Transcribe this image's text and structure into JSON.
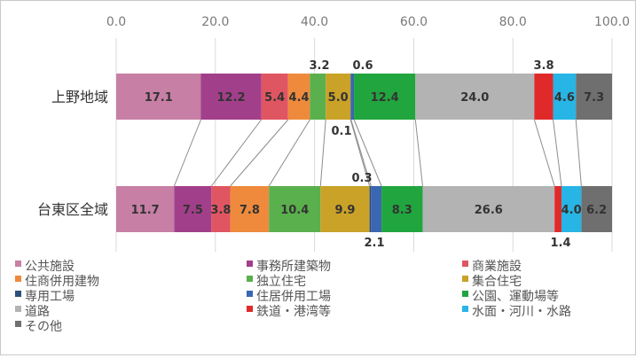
{
  "chart_data": {
    "type": "bar",
    "stacked": "percent",
    "orientation": "horizontal",
    "categories": [
      "上野地域",
      "台東区全域"
    ],
    "x_ticks": [
      "0.0",
      "20.0",
      "40.0",
      "60.0",
      "80.0",
      "100.0"
    ],
    "xlim": [
      0,
      100
    ],
    "grid": true,
    "legend_position": "bottom",
    "series": [
      {
        "name": "公共施設",
        "color": "#c77fa5",
        "values": [
          17.1,
          11.7
        ],
        "labels": [
          "17.1",
          "11.7"
        ]
      },
      {
        "name": "事務所建築物",
        "color": "#a23f8a",
        "values": [
          12.2,
          7.5
        ],
        "labels": [
          "12.2",
          "7.5"
        ]
      },
      {
        "name": "商業施設",
        "color": "#e05562",
        "values": [
          5.4,
          3.8
        ],
        "labels": [
          "5.4",
          "3.8"
        ]
      },
      {
        "name": "住商併用建物",
        "color": "#ef8a3c",
        "values": [
          4.4,
          7.8
        ],
        "labels": [
          "4.4",
          "7.8"
        ]
      },
      {
        "name": "独立住宅",
        "color": "#5ab04c",
        "values": [
          3.2,
          10.4
        ],
        "labels": [
          "3.2",
          "10.4"
        ]
      },
      {
        "name": "集合住宅",
        "color": "#c9a227",
        "values": [
          5.0,
          9.9
        ],
        "labels": [
          "5.0",
          "9.9"
        ]
      },
      {
        "name": "専用工場",
        "color": "#2b4f7a",
        "values": [
          0.1,
          0.3
        ],
        "labels": [
          "0.1",
          "0.3"
        ]
      },
      {
        "name": "住居併用工場",
        "color": "#3a66b2",
        "values": [
          0.6,
          2.1
        ],
        "labels": [
          "0.6",
          "2.1"
        ]
      },
      {
        "name": "公園、運動場等",
        "color": "#21a53e",
        "values": [
          12.4,
          8.3
        ],
        "labels": [
          "12.4",
          "8.3"
        ]
      },
      {
        "name": "道路",
        "color": "#b3b3b3",
        "values": [
          24.0,
          26.6
        ],
        "labels": [
          "24.0",
          "26.6"
        ]
      },
      {
        "name": "鉄道・港湾等",
        "color": "#e02a2a",
        "values": [
          3.8,
          1.4
        ],
        "labels": [
          "3.8",
          "1.4"
        ]
      },
      {
        "name": "水面・河川・水路",
        "color": "#27b5e5",
        "values": [
          4.6,
          4.0
        ],
        "labels": [
          "4.6",
          "4.0"
        ]
      },
      {
        "name": "その他",
        "color": "#6f6f6f",
        "values": [
          7.3,
          6.2
        ],
        "labels": [
          "7.3",
          "6.2"
        ]
      }
    ]
  }
}
